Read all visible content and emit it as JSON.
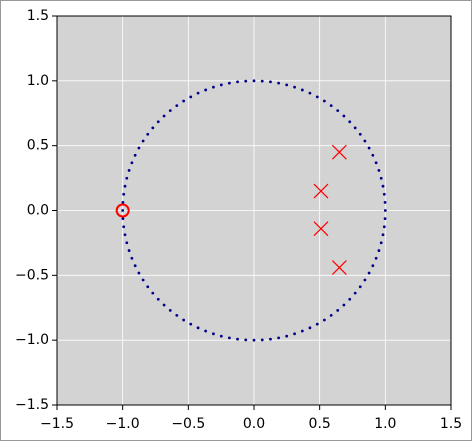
{
  "chart_data": {
    "type": "scatter",
    "series": [
      {
        "marker": "x",
        "color": "#ff0000",
        "x": [
          0.65,
          0.51,
          0.51,
          0.65
        ],
        "y": [
          0.45,
          0.15,
          -0.14,
          -0.44
        ]
      },
      {
        "marker": "o",
        "color": "#ff0000",
        "x": [
          -1.0
        ],
        "y": [
          0.0
        ]
      }
    ],
    "unit_circle": true,
    "unit_circle_color": "#00008b",
    "xlim": [
      -1.5,
      1.5
    ],
    "ylim": [
      -1.5,
      1.5
    ],
    "xticks": [
      {
        "value": -1.5,
        "label": "−1.5"
      },
      {
        "value": -1.0,
        "label": "−1.0"
      },
      {
        "value": -0.5,
        "label": "−0.5"
      },
      {
        "value": 0.0,
        "label": "0.0"
      },
      0.5,
      {
        "value": 1.0,
        "label": "1.0"
      },
      1.5
    ],
    "yticks": [
      {
        "value": -1.5,
        "label": "−1.5"
      },
      {
        "value": -1.0,
        "label": "−1.0"
      },
      {
        "value": -0.5,
        "label": "−0.5"
      },
      {
        "value": 0.0,
        "label": "0.0"
      },
      0.5,
      {
        "value": 1.0,
        "label": "1.0"
      },
      1.5
    ],
    "grid": true,
    "background": "#d3d3d3"
  }
}
